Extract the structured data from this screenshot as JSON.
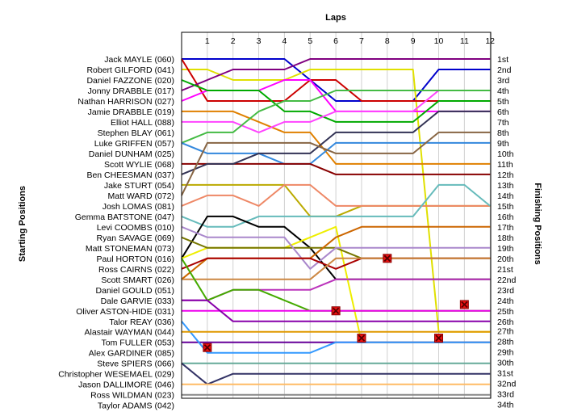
{
  "chart_data": {
    "type": "line",
    "title": "Laps",
    "ylabel_left": "Starting Positions",
    "ylabel_right": "Finishing Positions",
    "x": [
      0,
      1,
      2,
      3,
      4,
      5,
      6,
      7,
      8,
      9,
      10,
      11,
      12
    ],
    "x_tick_labels": [
      "1",
      "2",
      "3",
      "4",
      "5",
      "6",
      "7",
      "8",
      "9",
      "10",
      "11",
      "12"
    ],
    "drivers": [
      "Jack MAYLE (060)",
      "Robert GILFORD (041)",
      "Daniel FAZZONE (020)",
      "Jonny DRABBLE (017)",
      "Nathan HARRISON (027)",
      "Jamie DRABBLE (019)",
      "Elliot HALL (088)",
      "Stephen BLAY (061)",
      "Luke GRIFFEN (057)",
      "Daniel DUNHAM (025)",
      "Scott WYLIE (068)",
      "Ben CHEESMAN (037)",
      "Jake STURT (054)",
      "Matt WARD (072)",
      "Josh LOMAS (081)",
      "Gemma BATSTONE (047)",
      "Levi COOMBS (010)",
      "Ryan SAVAGE (069)",
      "Matt STONEMAN (073)",
      "Paul HORTON (016)",
      "Ross CAIRNS (022)",
      "Scott SMART (026)",
      "Daniel GOULD (051)",
      "Dale GARVIE (033)",
      "Oliver ASTON-HIDE (031)",
      "Talor REAY (036)",
      "Alastair WAYMAN (044)",
      "Tom FULLER (053)",
      "Alex GARDINER (085)",
      "Steve SPIERS (066)",
      "Christopher WESEMAEL (029)",
      "Jason DALLIMORE (046)",
      "Ross WILDMAN (023)",
      "Taylor ADAMS (042)"
    ],
    "finish_labels": [
      "1st",
      "2nd",
      "3rd",
      "4th",
      "5th",
      "6th",
      "7th",
      "8th",
      "9th",
      "10th",
      "11th",
      "12th",
      "13th",
      "14th",
      "15th",
      "16th",
      "17th",
      "18th",
      "19th",
      "20th",
      "21st",
      "22nd",
      "23rd",
      "24th",
      "25th",
      "26th",
      "27th",
      "28th",
      "29th",
      "30th",
      "31st",
      "32nd",
      "33rd",
      "34th"
    ],
    "finish_label_rows": [
      1,
      2,
      3,
      4,
      5,
      6,
      7,
      8,
      9,
      10,
      11,
      12,
      13,
      14,
      15,
      16,
      17,
      18,
      19,
      20,
      21,
      22,
      23,
      24,
      25,
      26,
      26.9,
      27.9,
      28.9,
      29.9,
      30.9,
      31.9,
      32.9,
      33.9
    ],
    "series": [
      {
        "color": "#0000cc",
        "positions": [
          1,
          1,
          1,
          1,
          1,
          3,
          5,
          5,
          5,
          5,
          2,
          2,
          2
        ],
        "retired": null
      },
      {
        "color": "#e0e000",
        "positions": [
          2,
          2,
          3,
          3,
          3,
          2,
          2,
          2,
          2,
          2,
          27,
          27,
          27
        ],
        "retired": null
      },
      {
        "color": "#cc0000",
        "positions": [
          1,
          5,
          5,
          5,
          5,
          3,
          3,
          5,
          5,
          5,
          5,
          5,
          5
        ],
        "retired": null
      },
      {
        "color": "#800080",
        "positions": [
          4,
          3,
          2,
          2,
          2,
          1,
          1,
          1,
          1,
          1,
          1,
          1,
          1
        ],
        "retired": null
      },
      {
        "color": "#ff00ff",
        "positions": [
          5,
          4,
          4,
          4,
          3,
          3,
          6,
          6,
          6,
          6,
          6,
          6,
          6
        ],
        "retired": null
      },
      {
        "color": "#e08000",
        "positions": [
          6,
          6,
          6,
          7,
          8,
          8,
          11,
          11,
          11,
          11,
          11,
          11,
          11
        ],
        "retired": null
      },
      {
        "color": "#00aa00",
        "positions": [
          3,
          4,
          4,
          4,
          6,
          6,
          7,
          7,
          7,
          7,
          5,
          5,
          5
        ],
        "retired": null
      },
      {
        "color": "#ff44ff",
        "positions": [
          7,
          7,
          7,
          8,
          7,
          7,
          6,
          6,
          6,
          6,
          4,
          4,
          4
        ],
        "retired": null
      },
      {
        "color": "#44bb44",
        "positions": [
          9,
          8,
          8,
          6,
          5,
          5,
          4,
          4,
          4,
          4,
          4,
          4,
          4
        ],
        "retired": null
      },
      {
        "color": "#3388dd",
        "positions": [
          9,
          10,
          10,
          10,
          11,
          11,
          9,
          9,
          9,
          9,
          9,
          9,
          9
        ],
        "retired": null
      },
      {
        "color": "#880000",
        "positions": [
          11,
          11,
          11,
          11,
          11,
          11,
          12,
          12,
          12,
          12,
          12,
          12,
          12
        ],
        "retired": null
      },
      {
        "color": "#333355",
        "positions": [
          12,
          11,
          11,
          10,
          10,
          10,
          8,
          8,
          8,
          8,
          6,
          6,
          6
        ],
        "retired": null
      },
      {
        "color": "#bbaa00",
        "positions": [
          13,
          13,
          13,
          13,
          13,
          16,
          16,
          15,
          15,
          15,
          15,
          15,
          15
        ],
        "retired": null
      },
      {
        "color": "#886644",
        "positions": [
          14,
          9,
          9,
          9,
          9,
          9,
          10,
          10,
          10,
          10,
          8,
          8,
          8
        ],
        "retired": null
      },
      {
        "color": "#ee8866",
        "positions": [
          15,
          14,
          14,
          15,
          13,
          13,
          15,
          15,
          15,
          15,
          15,
          15,
          15
        ],
        "retired": null
      },
      {
        "color": "#66bbbb",
        "positions": [
          16,
          17,
          17,
          16,
          16,
          16,
          16,
          16,
          16,
          16,
          13,
          13,
          15
        ],
        "retired": null
      },
      {
        "color": "#000000",
        "positions": [
          20,
          16,
          16,
          17,
          17,
          19,
          22,
          22,
          22,
          22,
          22,
          22,
          22
        ],
        "retired": null
      },
      {
        "color": "#eeee00",
        "positions": [
          20,
          19,
          19,
          19,
          19,
          18,
          17,
          28,
          28,
          28,
          28,
          28,
          28
        ],
        "retired": null
      },
      {
        "color": "#777700",
        "positions": [
          18,
          19,
          19,
          19,
          19,
          19,
          19,
          20,
          20,
          20,
          20,
          20,
          20
        ],
        "retired": null
      },
      {
        "color": "#aa88cc",
        "positions": [
          17,
          18,
          18,
          18,
          18,
          21,
          19,
          19,
          19,
          19,
          19,
          19,
          19
        ],
        "retired": null
      },
      {
        "color": "#cc6600",
        "positions": [
          22,
          20,
          20,
          20,
          20,
          20,
          18,
          17,
          17,
          17,
          17,
          17,
          17
        ],
        "retired": null
      },
      {
        "color": "#aa0000",
        "positions": [
          21,
          20,
          20,
          20,
          20,
          20,
          21,
          20,
          20,
          20,
          20,
          20,
          20
        ],
        "retired": null
      },
      {
        "color": "#bb33bb",
        "positions": [
          24,
          24,
          23,
          23,
          23,
          23,
          22,
          22,
          22,
          22,
          22,
          22,
          22
        ],
        "retired": null
      },
      {
        "color": "#cc8844",
        "positions": [
          22,
          22,
          22,
          22,
          22,
          22,
          20,
          20,
          20,
          20,
          20,
          20,
          20
        ],
        "retired": null
      },
      {
        "color": "#44aa00",
        "positions": [
          20,
          24,
          23,
          23,
          24,
          25,
          25,
          25,
          25,
          25,
          25,
          25,
          25
        ],
        "retired": null
      },
      {
        "color": "#ee00ee",
        "positions": [
          25,
          25,
          25,
          25,
          25,
          25,
          25,
          25,
          25,
          25,
          25,
          25,
          25
        ],
        "retired": null
      },
      {
        "color": "#8800aa",
        "positions": [
          24,
          24,
          26,
          26,
          26,
          26,
          26,
          26,
          26,
          26,
          26,
          26,
          26
        ],
        "retired": null
      },
      {
        "color": "#660099",
        "positions": [
          28,
          28,
          28,
          28,
          28,
          28,
          28,
          28,
          28,
          28,
          28,
          28,
          28
        ],
        "retired": null
      },
      {
        "color": "#3399ff",
        "positions": [
          26,
          29,
          29,
          29,
          29,
          29,
          28,
          28,
          28,
          28,
          28,
          28,
          28
        ],
        "retired": null
      },
      {
        "color": "#e09900",
        "positions": [
          27,
          27,
          27,
          27,
          27,
          27,
          27,
          27,
          27,
          27,
          27,
          27,
          27
        ],
        "retired": null
      },
      {
        "color": "#66aa99",
        "positions": [
          30,
          30,
          30,
          30,
          30,
          30,
          30,
          30,
          30,
          30,
          30,
          30,
          30
        ],
        "retired": null
      },
      {
        "color": "#333366",
        "positions": [
          30,
          32,
          31,
          31,
          31,
          31,
          31,
          31,
          31,
          31,
          31,
          31,
          31
        ],
        "retired": null
      },
      {
        "color": "#ffbb66",
        "positions": [
          32,
          32,
          32,
          32,
          32,
          32,
          32,
          32,
          32,
          32,
          32,
          32,
          32
        ],
        "retired": null
      },
      {
        "color": "#888888",
        "positions": [
          33,
          33,
          33,
          33,
          33,
          33,
          33,
          33,
          33,
          33,
          33,
          33,
          33
        ],
        "retired": null
      }
    ],
    "retirements": [
      {
        "lap": 1,
        "position": 28.5
      },
      {
        "lap": 6,
        "position": 25.0
      },
      {
        "lap": 7,
        "position": 27.6
      },
      {
        "lap": 8,
        "position": 20.0
      },
      {
        "lap": 10,
        "position": 27.6
      },
      {
        "lap": 11,
        "position": 24.4
      }
    ],
    "xlim": [
      0,
      12
    ],
    "ylim": [
      1,
      34
    ]
  }
}
